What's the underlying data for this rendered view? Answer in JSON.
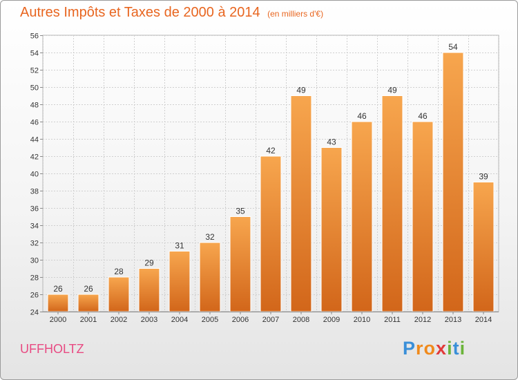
{
  "chart_data": {
    "type": "bar",
    "title": "Autres Impôts et Taxes de 2000 à 2014",
    "subtitle": "(en milliers d'€)",
    "categories": [
      "2000",
      "2001",
      "2002",
      "2003",
      "2004",
      "2005",
      "2006",
      "2007",
      "2008",
      "2009",
      "2010",
      "2011",
      "2012",
      "2013",
      "2014"
    ],
    "values": [
      26,
      26,
      28,
      29,
      31,
      32,
      35,
      42,
      49,
      43,
      46,
      49,
      46,
      54,
      39
    ],
    "ylim": [
      24,
      56
    ],
    "yticks": [
      24,
      26,
      28,
      30,
      32,
      34,
      36,
      38,
      40,
      42,
      44,
      46,
      48,
      50,
      52,
      54,
      56
    ],
    "grid": true,
    "xlabel": "",
    "ylabel": ""
  },
  "commune": "UFFHOLTZ",
  "logo": {
    "letters": [
      "P",
      "r",
      "o",
      "x",
      "i",
      "t",
      "i"
    ],
    "colors": [
      "#3a8fd8",
      "#f08a1c",
      "#f08a1c",
      "#e23a3a",
      "#6bb43a",
      "#3a8fd8",
      "#6bb43a"
    ]
  },
  "colors": {
    "title": "#e8651f",
    "bar_top": "#f7a64e",
    "bar_bottom": "#d2661a",
    "commune": "#e84a82",
    "grid": "#cfcfcf"
  }
}
